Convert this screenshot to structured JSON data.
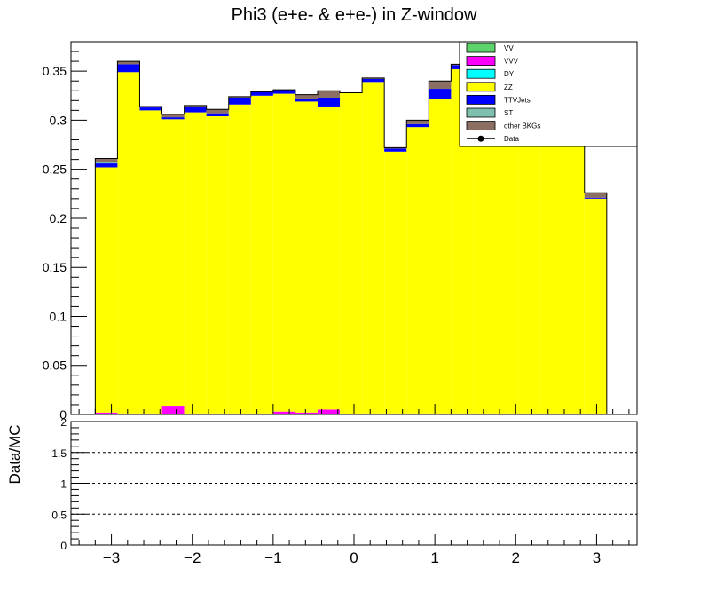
{
  "chart_data": {
    "type": "bar",
    "title": "Phi3 (e+e- & e+e-) in Z-window",
    "xlabel": "",
    "ylabel": "",
    "xlim": [
      -3.5,
      3.5
    ],
    "ylim": [
      0,
      0.38
    ],
    "bin_edges": [
      -3.2,
      -2.925,
      -2.65,
      -2.375,
      -2.1,
      -1.825,
      -1.55,
      -1.275,
      -1.0,
      -0.725,
      -0.45,
      -0.175,
      0.1,
      0.375,
      0.65,
      0.925,
      1.2,
      1.475,
      1.75,
      2.025,
      2.3,
      2.575,
      2.85,
      3.125
    ],
    "x_ticks": [
      -3,
      -2,
      -1,
      0,
      1,
      2,
      3
    ],
    "x_tick_labels": [
      "−3",
      "−2",
      "−1",
      "0",
      "1",
      "2",
      "3"
    ],
    "y_ticks": [
      0,
      0.05,
      0.1,
      0.15,
      0.2,
      0.25,
      0.3,
      0.35
    ],
    "y_tick_labels": [
      "0",
      "0.05",
      "0.1",
      "0.15",
      "0.2",
      "0.25",
      "0.3",
      "0.35"
    ],
    "series": [
      {
        "name": "VV",
        "color": "#5dd36b",
        "values": [
          0,
          0,
          0,
          0,
          0,
          0,
          0,
          0,
          0,
          0,
          0,
          0,
          0,
          0,
          0,
          0,
          0,
          0,
          0,
          0,
          0,
          0,
          0
        ]
      },
      {
        "name": "VVV",
        "color": "#ff00ff",
        "values": [
          0.002,
          0.001,
          0.001,
          0.009,
          0.001,
          0.001,
          0.001,
          0.001,
          0.003,
          0.002,
          0.005,
          0.0,
          0.001,
          0.001,
          0.001,
          0.001,
          0.001,
          0.001,
          0.001,
          0.001,
          0.001,
          0.001,
          0.001
        ]
      },
      {
        "name": "DY",
        "color": "#00ffff",
        "values": [
          0,
          0,
          0,
          0,
          0,
          0,
          0,
          0,
          0,
          0,
          0,
          0,
          0,
          0,
          0,
          0,
          0,
          0,
          0,
          0,
          0,
          0,
          0
        ]
      },
      {
        "name": "ZZ",
        "color": "#ffff00",
        "values": [
          0.25,
          0.348,
          0.309,
          0.292,
          0.307,
          0.303,
          0.315,
          0.324,
          0.324,
          0.317,
          0.309,
          0.328,
          0.338,
          0.267,
          0.292,
          0.321,
          0.351,
          0.345,
          0.34,
          0.33,
          0.335,
          0.32,
          0.219
        ]
      },
      {
        "name": "TTVJets",
        "color": "#0000ff",
        "values": [
          0.004,
          0.008,
          0.003,
          0.002,
          0.006,
          0.003,
          0.007,
          0.004,
          0.004,
          0.003,
          0.009,
          0.0,
          0.003,
          0.003,
          0.003,
          0.01,
          0.004,
          0.003,
          0.003,
          0.003,
          0.003,
          0.003,
          0.001
        ]
      },
      {
        "name": "ST",
        "color": "#7fbfad",
        "values": [
          0.001,
          0.0,
          0.0,
          0.0,
          0.0,
          0.0,
          0.0,
          0.0,
          0.0,
          0.0,
          0.0,
          0.0,
          0.0,
          0.0,
          0.0,
          0.0,
          0.0,
          0.0,
          0.0,
          0.0,
          0.0,
          0.0,
          0.0
        ]
      },
      {
        "name": "other BKGs",
        "color": "#8b6f62",
        "values": [
          0.004,
          0.003,
          0.001,
          0.003,
          0.001,
          0.004,
          0.001,
          0.0,
          0.0,
          0.004,
          0.007,
          0.0,
          0.001,
          0.001,
          0.004,
          0.008,
          0.001,
          0.001,
          0.001,
          0.001,
          0.001,
          0.001,
          0.005
        ]
      }
    ],
    "data_series": {
      "name": "Data",
      "values": []
    },
    "legend": {
      "placement": "top-right"
    },
    "ratio_panel": {
      "ylabel": "Data/MC",
      "ylim": [
        0,
        2
      ],
      "y_ticks": [
        0,
        0.5,
        1,
        1.5,
        2
      ],
      "y_tick_labels": [
        "0",
        "0.5",
        "1",
        "1.5",
        "2"
      ],
      "dashed_lines": [
        0.5,
        1,
        1.5
      ]
    }
  }
}
